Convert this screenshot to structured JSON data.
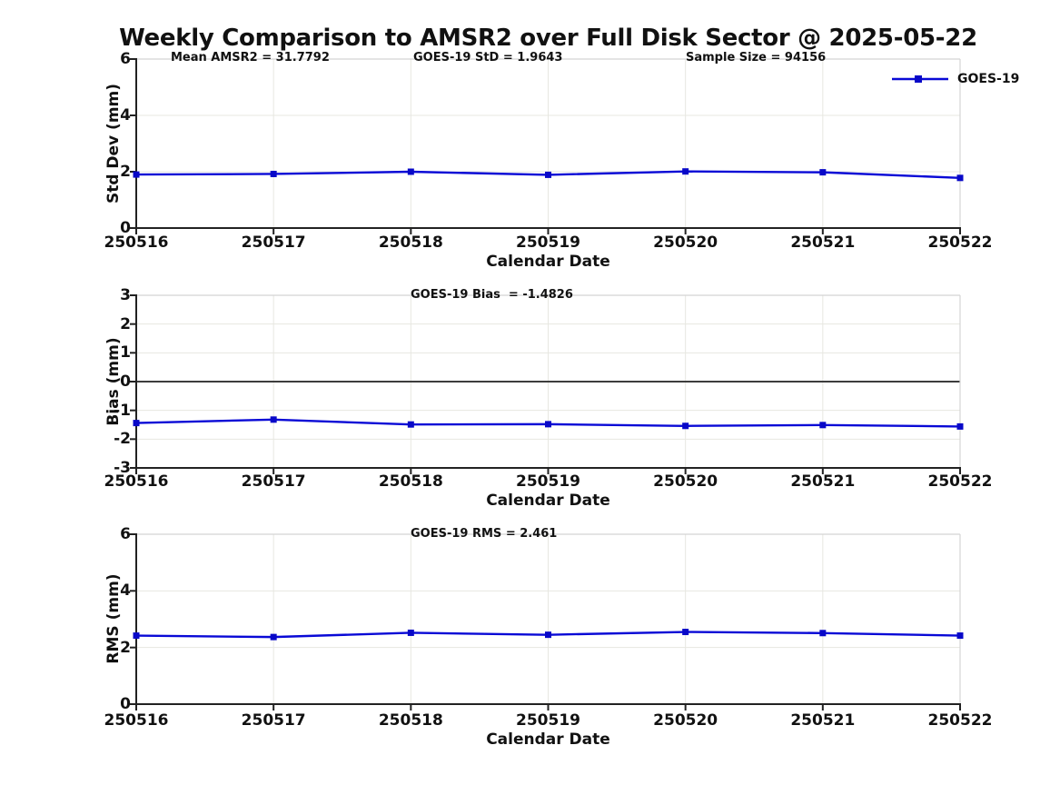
{
  "title": "Weekly Comparison to AMSR2 over Full Disk Sector @ 2025-05-22",
  "legend": {
    "label": "GOES-19"
  },
  "x_axis": {
    "label": "Calendar Date",
    "tick_labels": [
      "250516",
      "250517",
      "250518",
      "250519",
      "250520",
      "250521",
      "250522"
    ]
  },
  "colors": {
    "series_line": "#0909d6",
    "series_marker": "#0808c8",
    "grid": "#e7e7e1",
    "spine_dark": "#222222",
    "spine_light": "#d4d4d4",
    "zero_line": "#3c3c3c",
    "text": "#111111",
    "background": "#ffffff"
  },
  "chart_data": [
    {
      "type": "line",
      "name": "std-dev-panel",
      "ylabel": "Std Dev (mm)",
      "xlabel": "Calendar Date",
      "ylim": [
        0,
        6
      ],
      "yticks": [
        0,
        2,
        4,
        6
      ],
      "grid": true,
      "categories": [
        "250516",
        "250517",
        "250518",
        "250519",
        "250520",
        "250521",
        "250522"
      ],
      "annotations": [
        "Mean AMSR2 = 31.7792",
        "GOES-19 StD = 1.9643",
        "Sample Size = 94156"
      ],
      "legend_position": "upper-right",
      "series": [
        {
          "name": "GOES-19",
          "marker": "square",
          "values": [
            1.9,
            1.92,
            2.0,
            1.89,
            2.01,
            1.98,
            1.78
          ]
        }
      ]
    },
    {
      "type": "line",
      "name": "bias-panel",
      "ylabel": "Bias (mm)",
      "xlabel": "Calendar Date",
      "ylim": [
        -3,
        3
      ],
      "yticks": [
        -3,
        -2,
        -1,
        0,
        1,
        2,
        3
      ],
      "grid": true,
      "zero_line": true,
      "categories": [
        "250516",
        "250517",
        "250518",
        "250519",
        "250520",
        "250521",
        "250522"
      ],
      "annotations": [
        "GOES-19 Bias  = -1.4826"
      ],
      "series": [
        {
          "name": "GOES-19",
          "marker": "square",
          "values": [
            -1.44,
            -1.32,
            -1.49,
            -1.48,
            -1.54,
            -1.51,
            -1.56
          ]
        }
      ]
    },
    {
      "type": "line",
      "name": "rms-panel",
      "ylabel": "RMS (mm)",
      "xlabel": "Calendar Date",
      "ylim": [
        0,
        6
      ],
      "yticks": [
        0,
        2,
        4,
        6
      ],
      "grid": true,
      "categories": [
        "250516",
        "250517",
        "250518",
        "250519",
        "250520",
        "250521",
        "250522"
      ],
      "annotations": [
        "GOES-19 RMS = 2.461"
      ],
      "series": [
        {
          "name": "GOES-19",
          "marker": "square",
          "values": [
            2.42,
            2.37,
            2.52,
            2.45,
            2.55,
            2.51,
            2.42
          ]
        }
      ]
    }
  ]
}
